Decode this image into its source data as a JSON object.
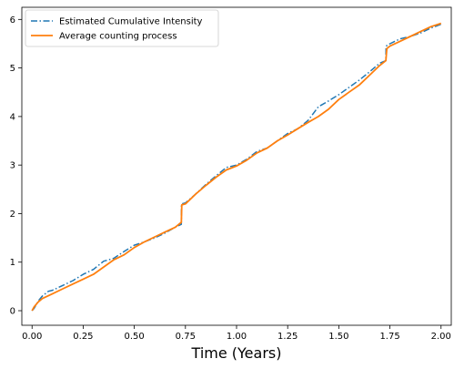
{
  "chart_data": {
    "type": "line",
    "title": "",
    "xlabel": "Time (Years)",
    "ylabel": "",
    "xlim": [
      -0.05,
      2.05
    ],
    "ylim": [
      -0.3,
      6.25
    ],
    "xticks": [
      0.0,
      0.25,
      0.5,
      0.75,
      1.0,
      1.25,
      1.5,
      1.75,
      2.0
    ],
    "xtick_labels": [
      "0.00",
      "0.25",
      "0.50",
      "0.75",
      "1.00",
      "1.25",
      "1.50",
      "1.75",
      "2.00"
    ],
    "yticks": [
      0,
      1,
      2,
      3,
      4,
      5,
      6
    ],
    "ytick_labels": [
      "0",
      "1",
      "2",
      "3",
      "4",
      "5",
      "6"
    ],
    "grid": false,
    "legend_position": "upper-left",
    "series": [
      {
        "name": "Estimated Cumulative Intensity",
        "color": "#1f77b4",
        "style": "dashdot",
        "x": [
          0.0,
          0.01,
          0.03,
          0.05,
          0.08,
          0.1,
          0.15,
          0.2,
          0.25,
          0.3,
          0.35,
          0.4,
          0.45,
          0.5,
          0.55,
          0.6,
          0.65,
          0.7,
          0.73,
          0.731,
          0.75,
          0.8,
          0.85,
          0.9,
          0.95,
          1.0,
          1.05,
          1.1,
          1.15,
          1.2,
          1.25,
          1.3,
          1.35,
          1.4,
          1.45,
          1.5,
          1.55,
          1.6,
          1.65,
          1.7,
          1.73,
          1.731,
          1.75,
          1.8,
          1.85,
          1.9,
          1.95,
          2.0
        ],
        "y": [
          0.0,
          0.05,
          0.2,
          0.3,
          0.4,
          0.42,
          0.52,
          0.62,
          0.75,
          0.85,
          1.02,
          1.08,
          1.22,
          1.35,
          1.42,
          1.5,
          1.6,
          1.72,
          1.78,
          2.2,
          2.22,
          2.4,
          2.6,
          2.78,
          2.95,
          3.0,
          3.12,
          3.28,
          3.35,
          3.5,
          3.65,
          3.75,
          3.92,
          4.2,
          4.32,
          4.45,
          4.6,
          4.75,
          4.92,
          5.1,
          5.15,
          5.45,
          5.5,
          5.6,
          5.65,
          5.72,
          5.82,
          5.9
        ]
      },
      {
        "name": "Average counting process",
        "color": "#ff7f0e",
        "style": "solid",
        "x": [
          0.0,
          0.01,
          0.03,
          0.05,
          0.1,
          0.15,
          0.2,
          0.25,
          0.3,
          0.35,
          0.4,
          0.45,
          0.5,
          0.55,
          0.6,
          0.65,
          0.7,
          0.73,
          0.732,
          0.75,
          0.8,
          0.85,
          0.9,
          0.95,
          1.0,
          1.05,
          1.1,
          1.15,
          1.2,
          1.25,
          1.3,
          1.35,
          1.4,
          1.45,
          1.5,
          1.55,
          1.6,
          1.65,
          1.7,
          1.73,
          1.735,
          1.75,
          1.8,
          1.85,
          1.9,
          1.95,
          2.0
        ],
        "y": [
          0.0,
          0.08,
          0.18,
          0.25,
          0.35,
          0.45,
          0.55,
          0.65,
          0.75,
          0.9,
          1.05,
          1.15,
          1.3,
          1.42,
          1.52,
          1.62,
          1.72,
          1.82,
          2.18,
          2.2,
          2.4,
          2.58,
          2.75,
          2.9,
          2.98,
          3.1,
          3.25,
          3.35,
          3.5,
          3.62,
          3.75,
          3.88,
          4.0,
          4.15,
          4.35,
          4.5,
          4.65,
          4.85,
          5.05,
          5.15,
          5.4,
          5.45,
          5.55,
          5.65,
          5.75,
          5.85,
          5.92
        ]
      }
    ]
  }
}
